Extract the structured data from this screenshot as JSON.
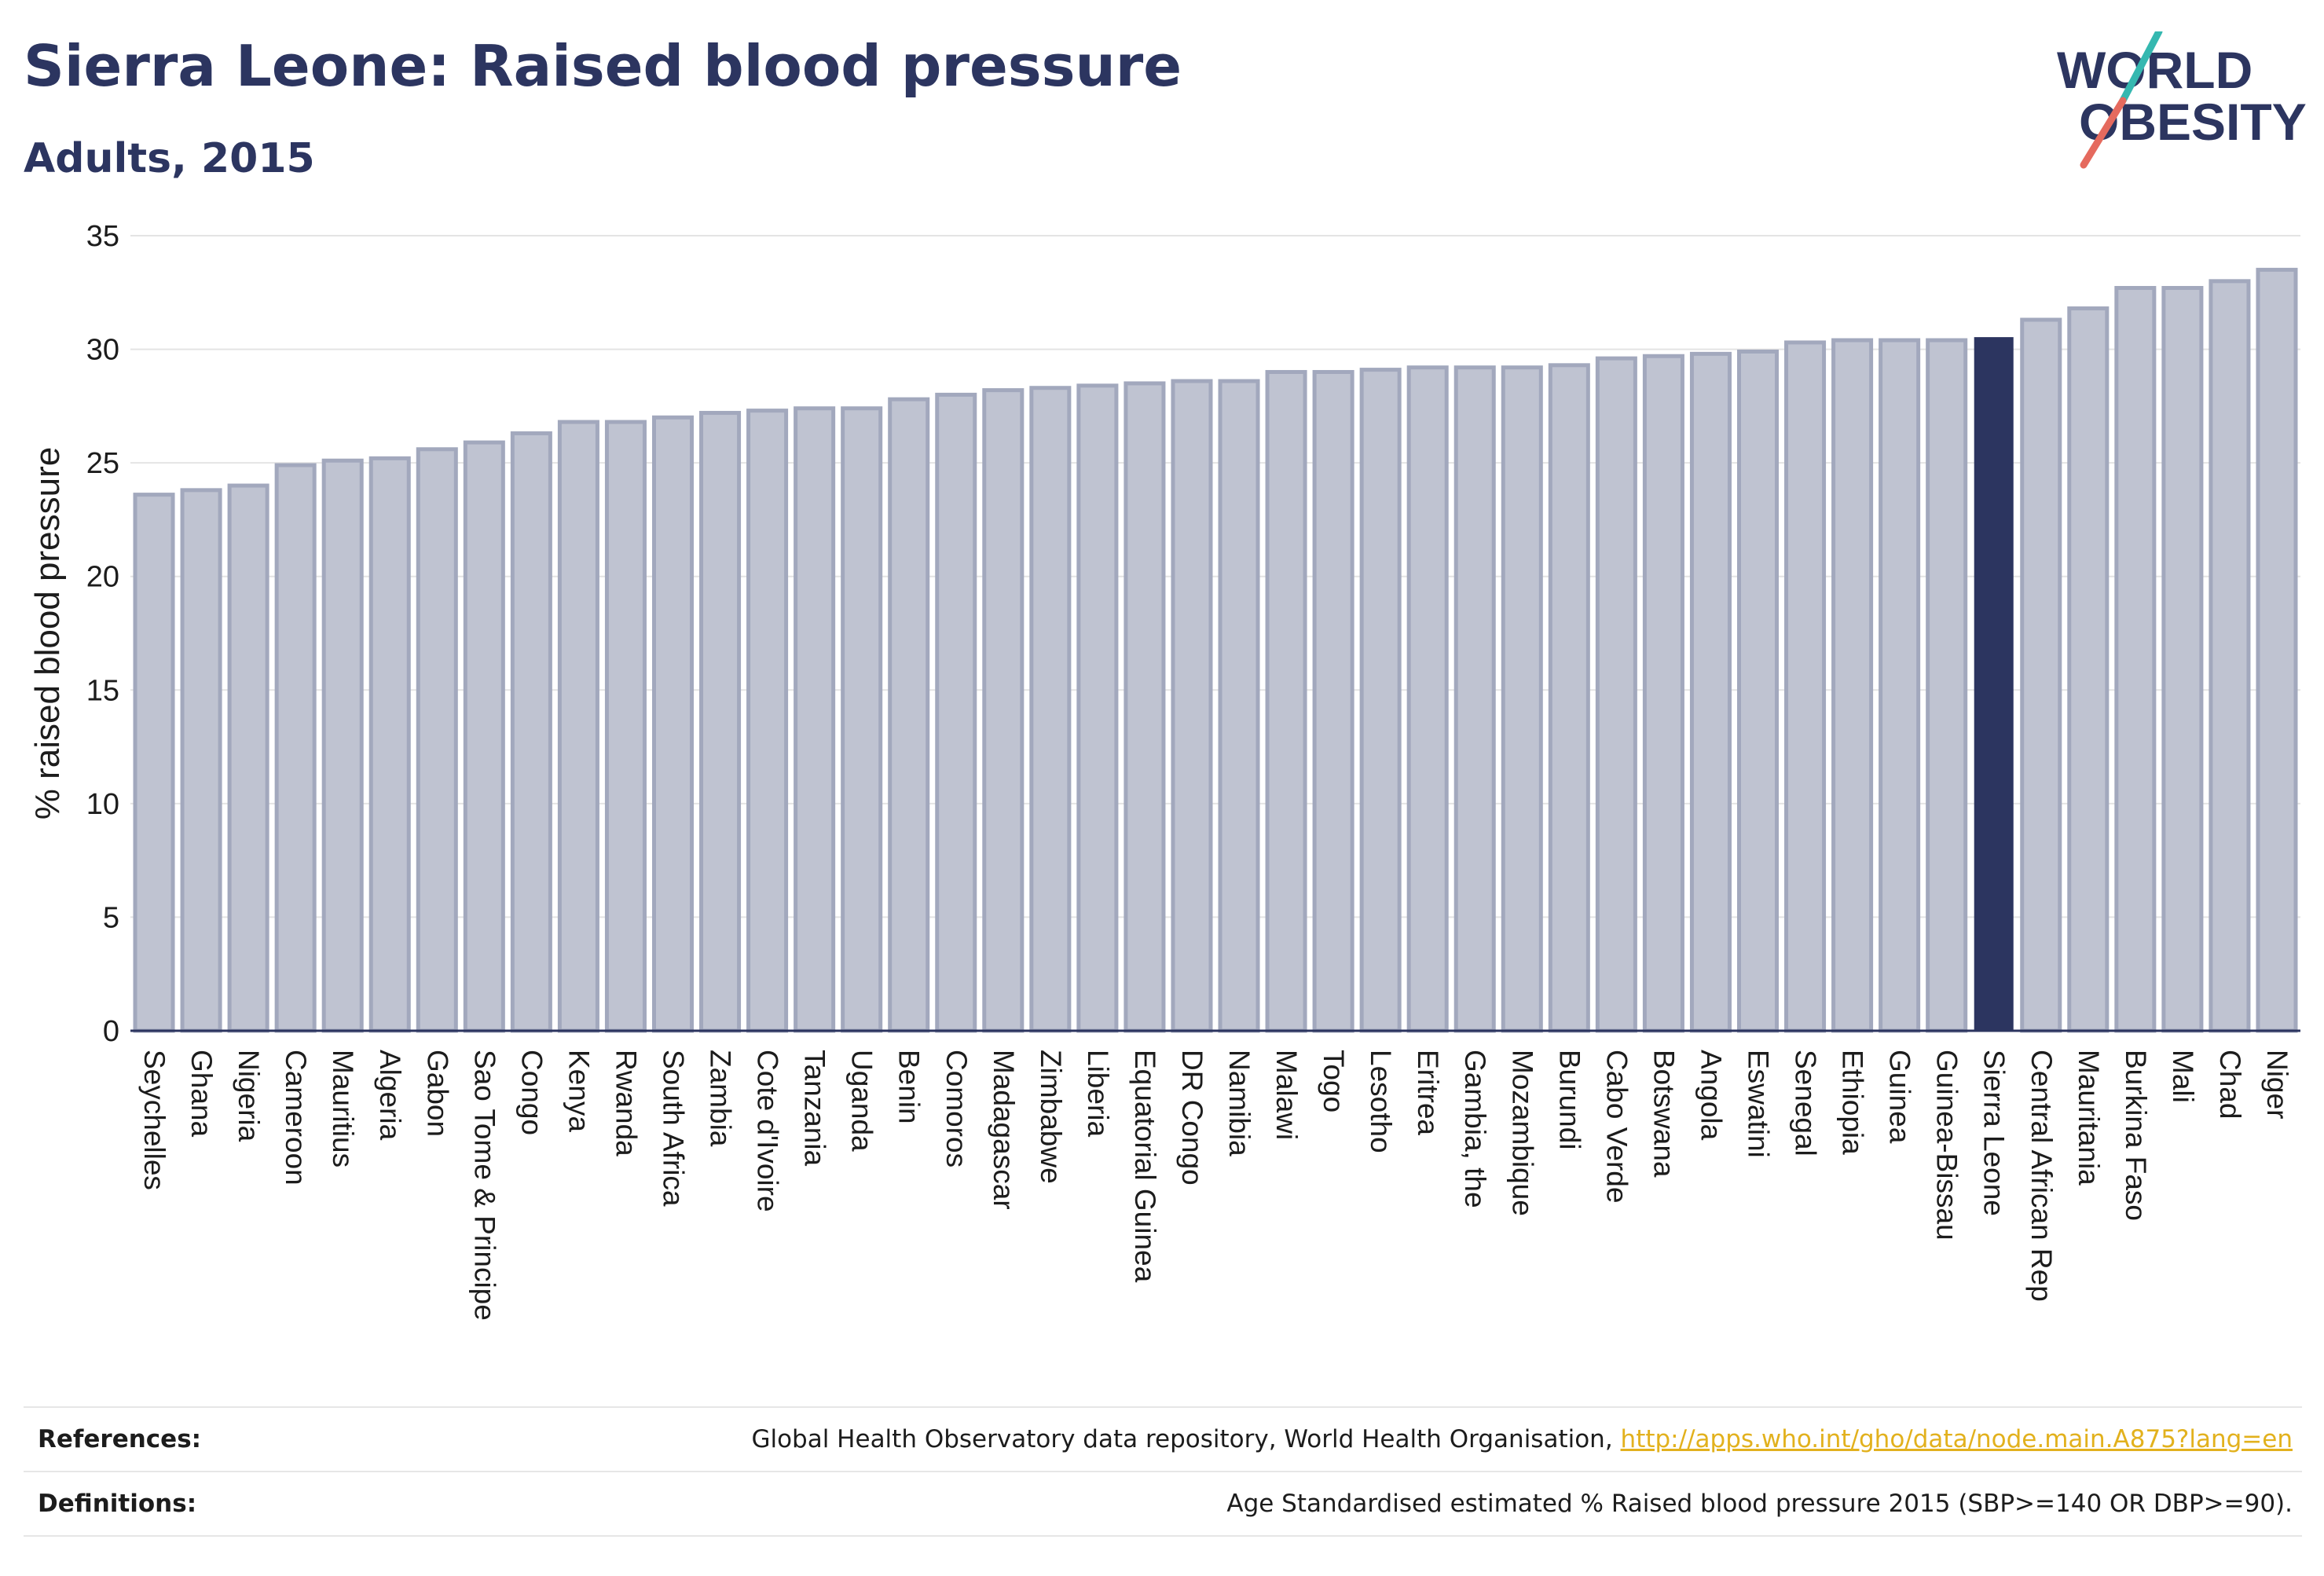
{
  "header": {
    "title": "Sierra Leone: Raised blood pressure",
    "subtitle": "Adults, 2015"
  },
  "logo": {
    "line1": "WORLD",
    "line2": "OBESITY"
  },
  "colors": {
    "bar_fill": "#bfc3d1",
    "bar_stroke": "#a2a8bd",
    "highlight": "#2c3560",
    "logo_text": "#2c3560",
    "logo_teal": "#35b8b0",
    "logo_coral": "#e56a5e",
    "link": "#e2b11d"
  },
  "chart_data": {
    "type": "bar",
    "ylabel": "% raised blood pressure",
    "ylim": [
      0,
      35
    ],
    "yticks": [
      0,
      5,
      10,
      15,
      20,
      25,
      30,
      35
    ],
    "grid": true,
    "highlight": "Sierra Leone",
    "categories": [
      "Seychelles",
      "Ghana",
      "Nigeria",
      "Cameroon",
      "Mauritius",
      "Algeria",
      "Gabon",
      "Sao Tome & Principe",
      "Congo",
      "Kenya",
      "Rwanda",
      "South Africa",
      "Zambia",
      "Cote d'Ivoire",
      "Tanzania",
      "Uganda",
      "Benin",
      "Comoros",
      "Madagascar",
      "Zimbabwe",
      "Liberia",
      "Equatorial Guinea",
      "DR Congo",
      "Namibia",
      "Malawi",
      "Togo",
      "Lesotho",
      "Eritrea",
      "Gambia, the",
      "Mozambique",
      "Burundi",
      "Cabo Verde",
      "Botswana",
      "Angola",
      "Eswatini",
      "Senegal",
      "Ethiopia",
      "Guinea",
      "Guinea-Bissau",
      "Sierra Leone",
      "Central African Rep",
      "Mauritania",
      "Burkina Faso",
      "Mali",
      "Chad",
      "Niger"
    ],
    "values": [
      23.6,
      23.8,
      24.0,
      24.9,
      25.1,
      25.2,
      25.6,
      25.9,
      26.3,
      26.8,
      26.8,
      27.0,
      27.2,
      27.3,
      27.4,
      27.4,
      27.8,
      28.0,
      28.2,
      28.3,
      28.4,
      28.5,
      28.6,
      28.6,
      29.0,
      29.0,
      29.1,
      29.2,
      29.2,
      29.2,
      29.3,
      29.6,
      29.7,
      29.8,
      29.9,
      30.3,
      30.4,
      30.4,
      30.4,
      30.5,
      31.3,
      31.8,
      32.7,
      32.7,
      33.0,
      33.5
    ]
  },
  "footer": {
    "references_label": "References:",
    "references_text": "Global Health Observatory data repository, World Health Organisation, ",
    "references_link": "http://apps.who.int/gho/data/node.main.A875?lang=en",
    "definitions_label": "Definitions:",
    "definitions_text": "Age Standardised estimated % Raised blood pressure 2015 (SBP>=140 OR DBP>=90)."
  }
}
